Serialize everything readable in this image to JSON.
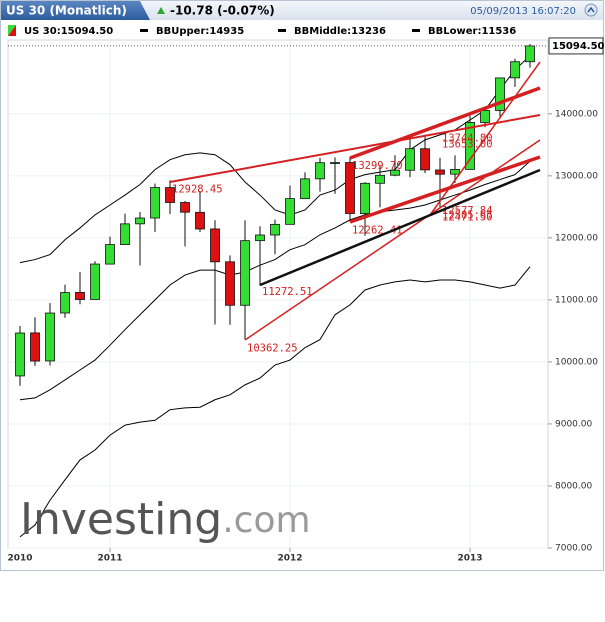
{
  "header": {
    "title": "US 30 (Monatlich)",
    "change": "-10.78 (-0.07%)",
    "datetime": "05/09/2013 16:07:20"
  },
  "chart_data": {
    "type": "candlestick",
    "legend": [
      "US 30:15094.50",
      "BBUpper:14935",
      "BBMiddle:13236",
      "BBLower:11536"
    ],
    "last_label": {
      "value": 15094.5,
      "label": "15094.50"
    },
    "x": [
      2010.5,
      2010.5833,
      2010.6667,
      2010.75,
      2010.8333,
      2010.9167,
      2011,
      2011.0833,
      2011.1667,
      2011.25,
      2011.3333,
      2011.4167,
      2011.5,
      2011.5833,
      2011.6667,
      2011.75,
      2011.8333,
      2011.9167,
      2012,
      2012.0833,
      2012.1667,
      2012.25,
      2012.3333,
      2012.4167,
      2012.5,
      2012.5833,
      2012.6667,
      2012.75,
      2012.8333,
      2012.9167,
      2013,
      2013.0833,
      2013.1667,
      2013.25,
      2013.3333
    ],
    "candles": {
      "name": "US 30",
      "up_color": "#33dd33",
      "down_color": "#dd1111",
      "open": [
        9774,
        10468,
        10016,
        10789,
        11120,
        11007,
        11577,
        11892,
        12226,
        12320,
        12811,
        12570,
        12412,
        12144,
        11614,
        10913,
        11955,
        12046,
        12218,
        12632,
        12952,
        13212,
        13214,
        12391,
        12880,
        13010,
        13090,
        13437,
        13094,
        13027,
        13104,
        13861,
        14054,
        14580,
        14840
      ],
      "high": [
        10580,
        10720,
        10948,
        11246,
        11451,
        11625,
        12020,
        12391,
        12419,
        12876,
        12928.45,
        12595,
        12753,
        12284,
        11717,
        12284,
        12187,
        12294,
        12842,
        13055,
        13290,
        13297,
        13299.7,
        12898,
        13159,
        13331,
        13653,
        13661,
        13290,
        13330,
        13969,
        14055,
        14585,
        14888,
        15125
      ],
      "low": [
        9614,
        9936,
        9941,
        10711,
        10929,
        11007,
        11575,
        11892,
        11555,
        12093,
        12382,
        11863,
        12093,
        10604,
        10597,
        10362.25,
        11231,
        11735,
        12218,
        12632,
        12745,
        12710,
        12262.41,
        12035,
        12492,
        12993,
        12978,
        13044,
        12471.5,
        12883,
        13104,
        13784,
        13938,
        14434,
        14744
      ],
      "close": [
        10466,
        10014,
        10788,
        11118,
        11006,
        11578,
        11892,
        12226,
        12320,
        12811,
        12570,
        12414,
        12143,
        11614,
        10913,
        11955,
        12046,
        12218,
        12633,
        12952,
        13212,
        13214,
        12393,
        12880,
        13009,
        13091,
        13437,
        13096,
        13026,
        13104,
        13861,
        14054,
        14579,
        14840,
        15094.5
      ]
    },
    "series": [
      {
        "name": "BBUpper",
        "color": "#000000",
        "values": [
          11600,
          11650,
          11730,
          11970,
          12160,
          12370,
          12530,
          12690,
          12860,
          13100,
          13260,
          13340,
          13370,
          13340,
          13180,
          12900,
          12690,
          12450,
          12370,
          12450,
          12690,
          12770,
          12940,
          13020,
          13060,
          13100,
          13420,
          13580,
          13660,
          13740,
          13900,
          14060,
          14390,
          14710,
          14935
        ]
      },
      {
        "name": "BBMiddle",
        "color": "#000000",
        "values": [
          9390,
          9420,
          9550,
          9710,
          9870,
          10030,
          10270,
          10520,
          10760,
          11000,
          11240,
          11400,
          11480,
          11480,
          11400,
          11450,
          11560,
          11650,
          11810,
          11890,
          12050,
          12160,
          12290,
          12370,
          12420,
          12450,
          12480,
          12530,
          12610,
          12690,
          12770,
          12860,
          12940,
          13020,
          13236
        ]
      },
      {
        "name": "BBLower",
        "color": "#000000",
        "values": [
          7180,
          7370,
          7770,
          8100,
          8420,
          8580,
          8820,
          8980,
          9030,
          9060,
          9230,
          9260,
          9270,
          9390,
          9470,
          9630,
          9740,
          9950,
          10030,
          10230,
          10360,
          10760,
          10920,
          11160,
          11240,
          11290,
          11320,
          11290,
          11320,
          11320,
          11290,
          11240,
          11190,
          11240,
          11536
        ]
      }
    ],
    "annotations": [
      {
        "x": 2011.3333,
        "value": 12928.45,
        "label": "12928.45"
      },
      {
        "x": 2012.3333,
        "value": 13299.7,
        "label": "13299.70"
      },
      {
        "x": 2012.3333,
        "value": 12262.41,
        "label": "12262.41"
      },
      {
        "x": 2011.75,
        "value": 10362.25,
        "label": "10362.25"
      },
      {
        "x": 2011.8333,
        "value": 11272.51,
        "label": "11272.51"
      },
      {
        "x": 2012.8333,
        "value": 13744.8,
        "label": "13744.80"
      },
      {
        "x": 2012.8333,
        "value": 13653,
        "label": "13653.00"
      },
      {
        "x": 2012.8333,
        "value": 12577.84,
        "label": "12577.84"
      },
      {
        "x": 2012.8333,
        "value": 12505.65,
        "label": "12505.65"
      },
      {
        "x": 2012.8333,
        "value": 12471.5,
        "label": "12471.50"
      }
    ],
    "xlim": [
      2010.4333,
      2013.4333
    ],
    "xticks": [
      2010,
      2011,
      2012,
      2013
    ],
    "ylim": [
      7000,
      15190
    ],
    "yticks": [
      {
        "value": 7000,
        "label": "7000.00"
      },
      {
        "value": 8000,
        "label": "8000.00"
      },
      {
        "value": 9000,
        "label": "9000.00"
      },
      {
        "value": 10000,
        "label": "10000.00"
      },
      {
        "value": 11000,
        "label": "11000.00"
      },
      {
        "value": 12000,
        "label": "12000.00"
      },
      {
        "value": 13000,
        "label": "13000.00"
      },
      {
        "value": 14000,
        "label": "14000.00"
      }
    ],
    "grid": true
  },
  "watermark": {
    "brand": "Investing",
    "suffix": ".com"
  }
}
